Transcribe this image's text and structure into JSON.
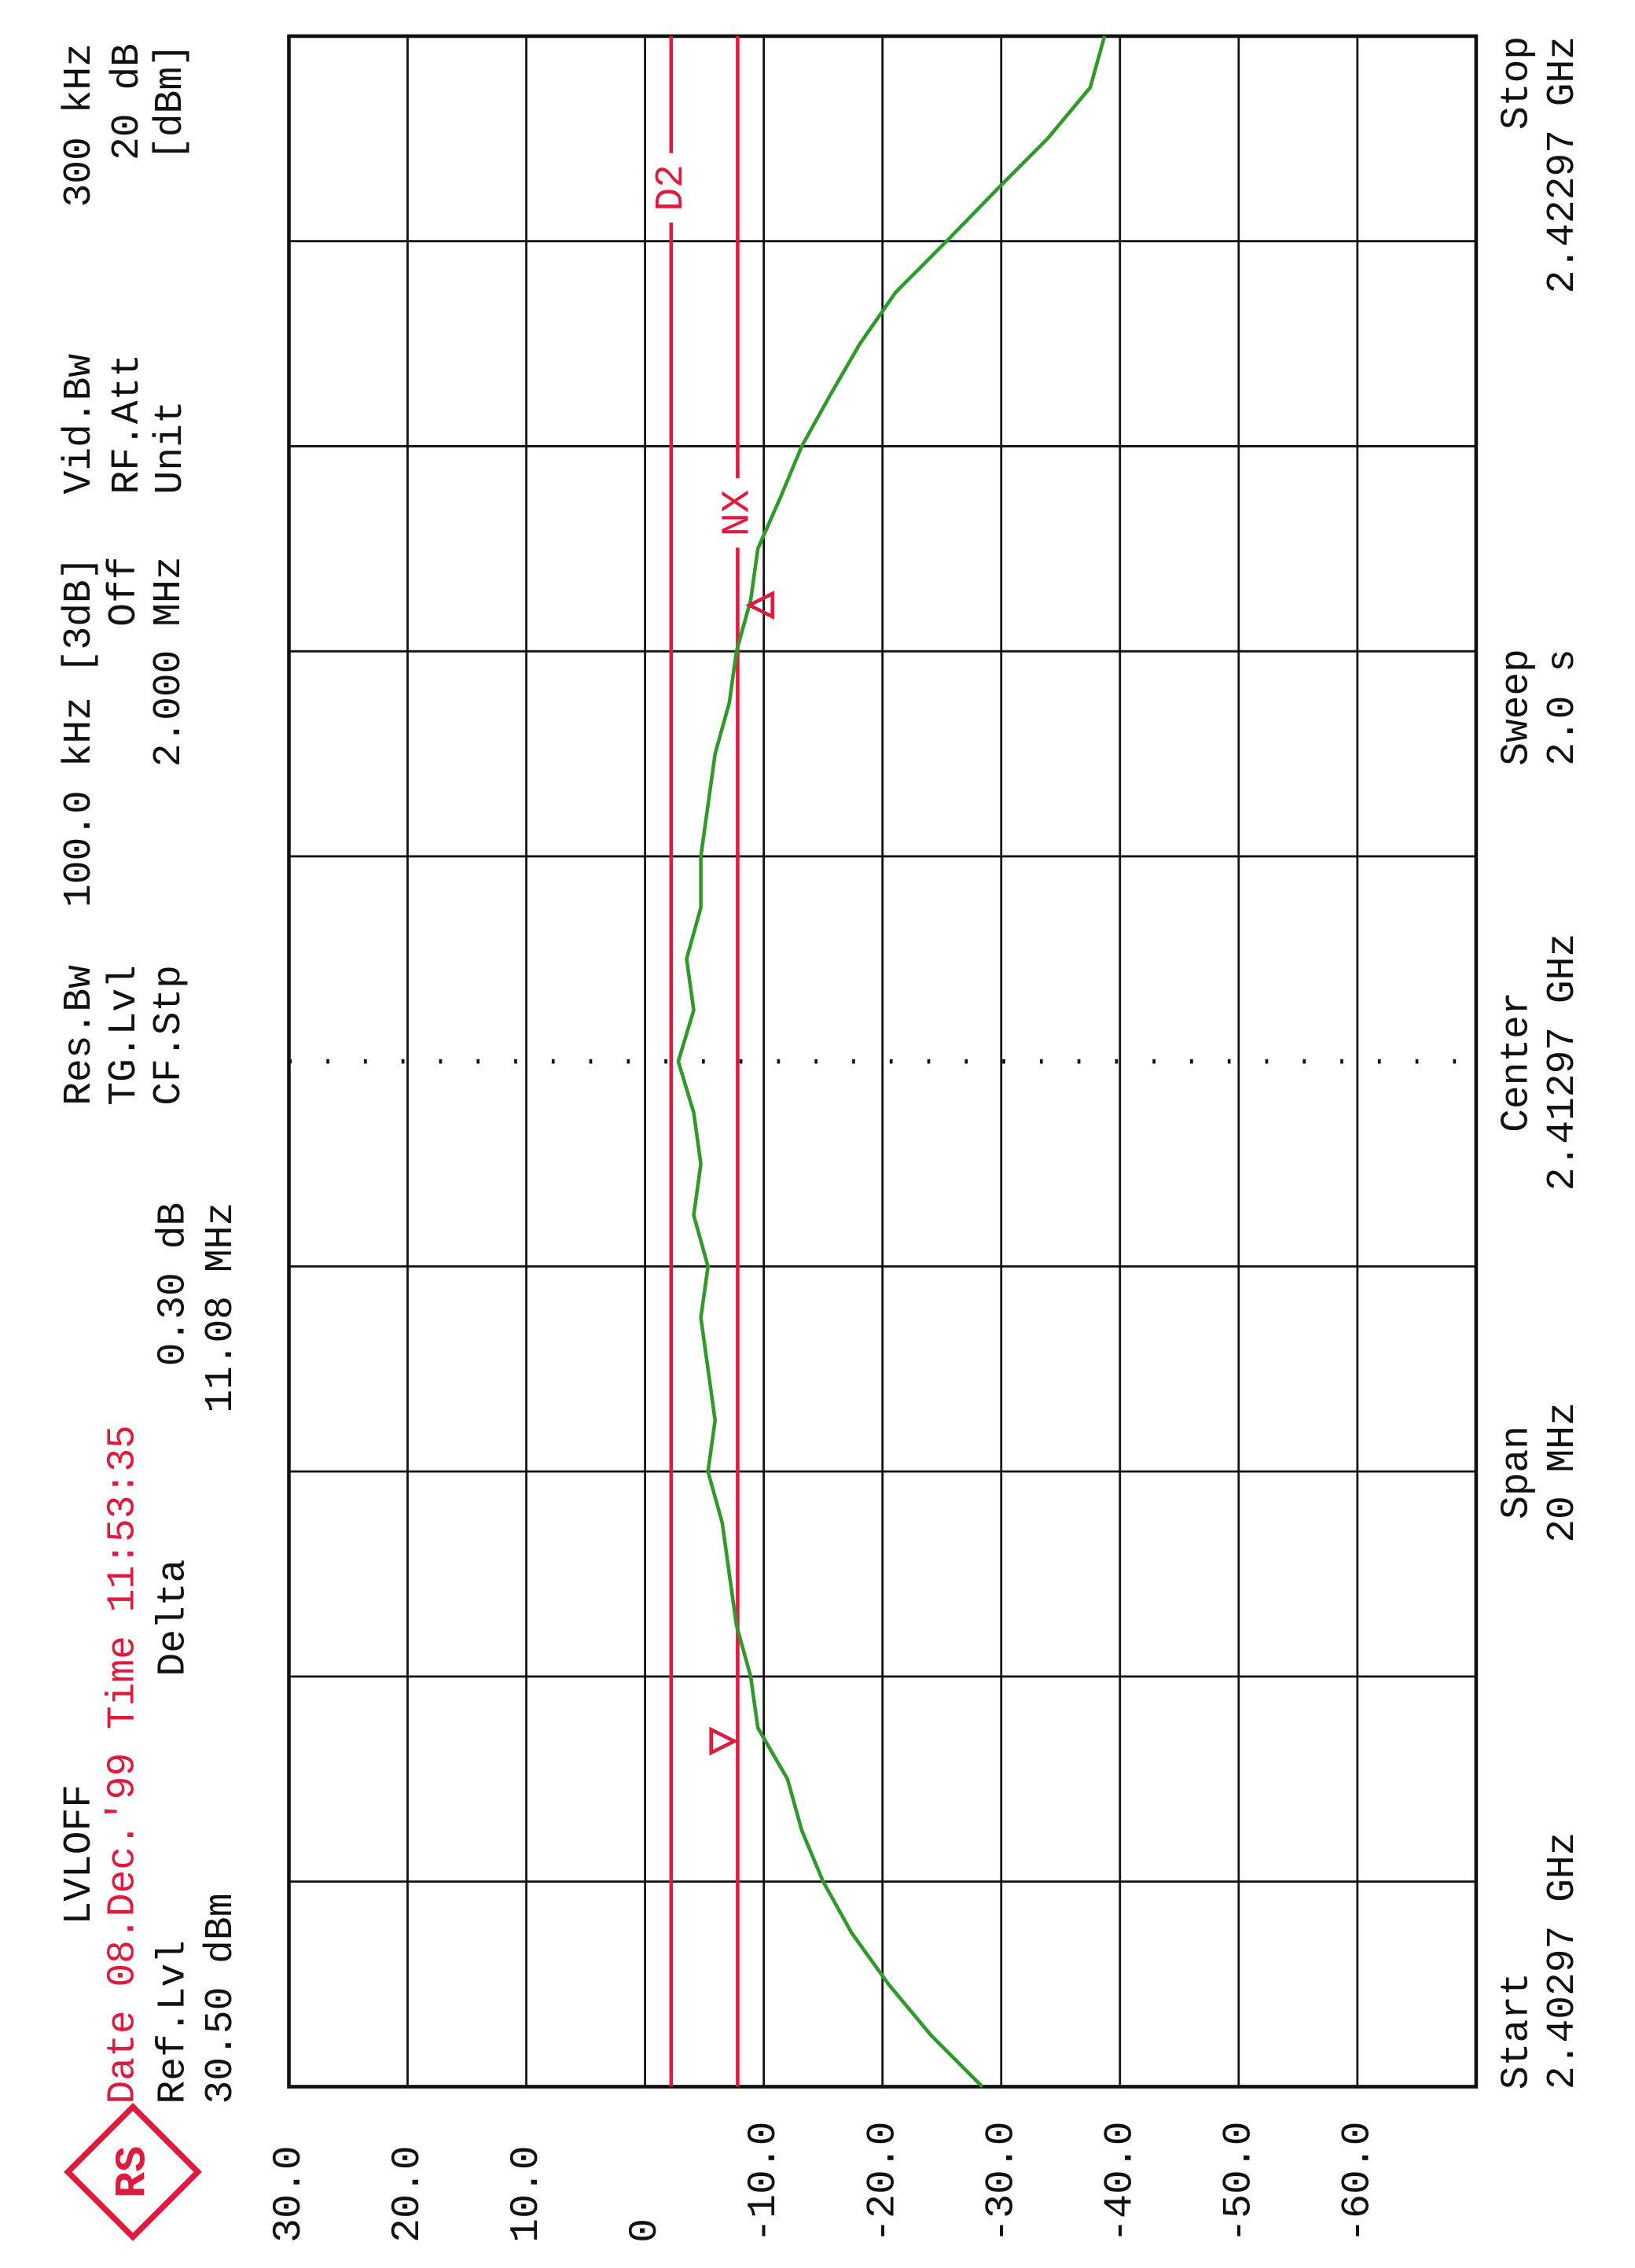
{
  "chart_data": {
    "type": "line",
    "logo": "RS",
    "header": {
      "mode": "LVLOFF",
      "date": "Date 08.Dec.'99  Time 11:53:35",
      "ref_label": "Ref.Lvl",
      "ref_value": "30.50 dBm",
      "delta_label": "Delta",
      "delta_level": "0.30 dB",
      "delta_freq": "11.08 MHz",
      "rbw_label": "Res.Bw",
      "tg_label": "TG.Lvl",
      "cf_label": "CF.Stp",
      "rbw_value": "100.0 kHz [3dB]",
      "tg_value": "Off",
      "cf_value": "2.000 MHz",
      "vbw_label": "Vid.Bw",
      "vbw_value": "300 kHz",
      "att_label": "RF.Att",
      "unit_label": "Unit",
      "att_value": "20 dB",
      "unit_value": "[dBm]"
    },
    "footer": {
      "start_label": "Start",
      "start_value": "2.40297 GHz",
      "span_label": "Span",
      "span_value": "20 MHz",
      "center_label": "Center",
      "center_value": "2.41297 GHz",
      "sweep_label": "Sweep",
      "sweep_value": "2.0 s",
      "stop_label": "Stop",
      "stop_value": "2.42297 GHz"
    },
    "xlim": [
      2.40297,
      2.42297
    ],
    "ylim": [
      -70,
      30
    ],
    "yticks": [
      {
        "value": 30,
        "label": "30.0"
      },
      {
        "value": 20,
        "label": "20.0"
      },
      {
        "value": 10,
        "label": "10.0"
      },
      0,
      {
        "value": -10,
        "label": "-10.0"
      },
      {
        "value": -20,
        "label": "-20.0"
      },
      {
        "value": -30,
        "label": "-30.0"
      },
      {
        "value": -40,
        "label": "-40.0"
      },
      {
        "value": -50,
        "label": "-50.0"
      },
      {
        "value": -60,
        "label": "-60.0"
      }
    ],
    "grid": true,
    "x": [
      2.40297,
      2.40347,
      2.40397,
      2.40447,
      2.40497,
      2.40547,
      2.40597,
      2.40647,
      2.40697,
      2.40747,
      2.40797,
      2.40847,
      2.40897,
      2.40947,
      2.40997,
      2.41047,
      2.41097,
      2.41147,
      2.41197,
      2.41247,
      2.41297,
      2.41347,
      2.41397,
      2.41447,
      2.41497,
      2.41547,
      2.41597,
      2.41647,
      2.41697,
      2.41747,
      2.41797,
      2.41847,
      2.41897,
      2.41947,
      2.41997,
      2.42047,
      2.42097,
      2.42147,
      2.42197,
      2.42247,
      2.42297
    ],
    "series": [
      {
        "color": "#2f9a2a",
        "values": [
          -28.4,
          -24.1,
          -20.5,
          -17.4,
          -15,
          -13.2,
          -12,
          -9.5,
          -8.9,
          -7.7,
          -7.1,
          -6.5,
          -5.3,
          -5.9,
          -5.3,
          -4.7,
          -5.3,
          -4.1,
          -4.7,
          -4.1,
          -2.8,
          -4.1,
          -3.5,
          -4.7,
          -4.7,
          -5.3,
          -5.9,
          -7.1,
          -7.7,
          -8.9,
          -9.5,
          -11.4,
          -13.2,
          -15.6,
          -18.1,
          -21.1,
          -25.4,
          -29.6,
          -33.9,
          -37.5,
          -38.7
        ]
      }
    ],
    "lines": [
      {
        "label": "D2",
        "value": -2.2,
        "color": "#e01a3c"
      },
      {
        "label": "NX",
        "value": -7.8,
        "color": "#e01a3c"
      }
    ],
    "markers": [
      {
        "x": 2.40634,
        "value": -8.0
      },
      {
        "x": 2.41742,
        "value": -8.3
      }
    ]
  }
}
